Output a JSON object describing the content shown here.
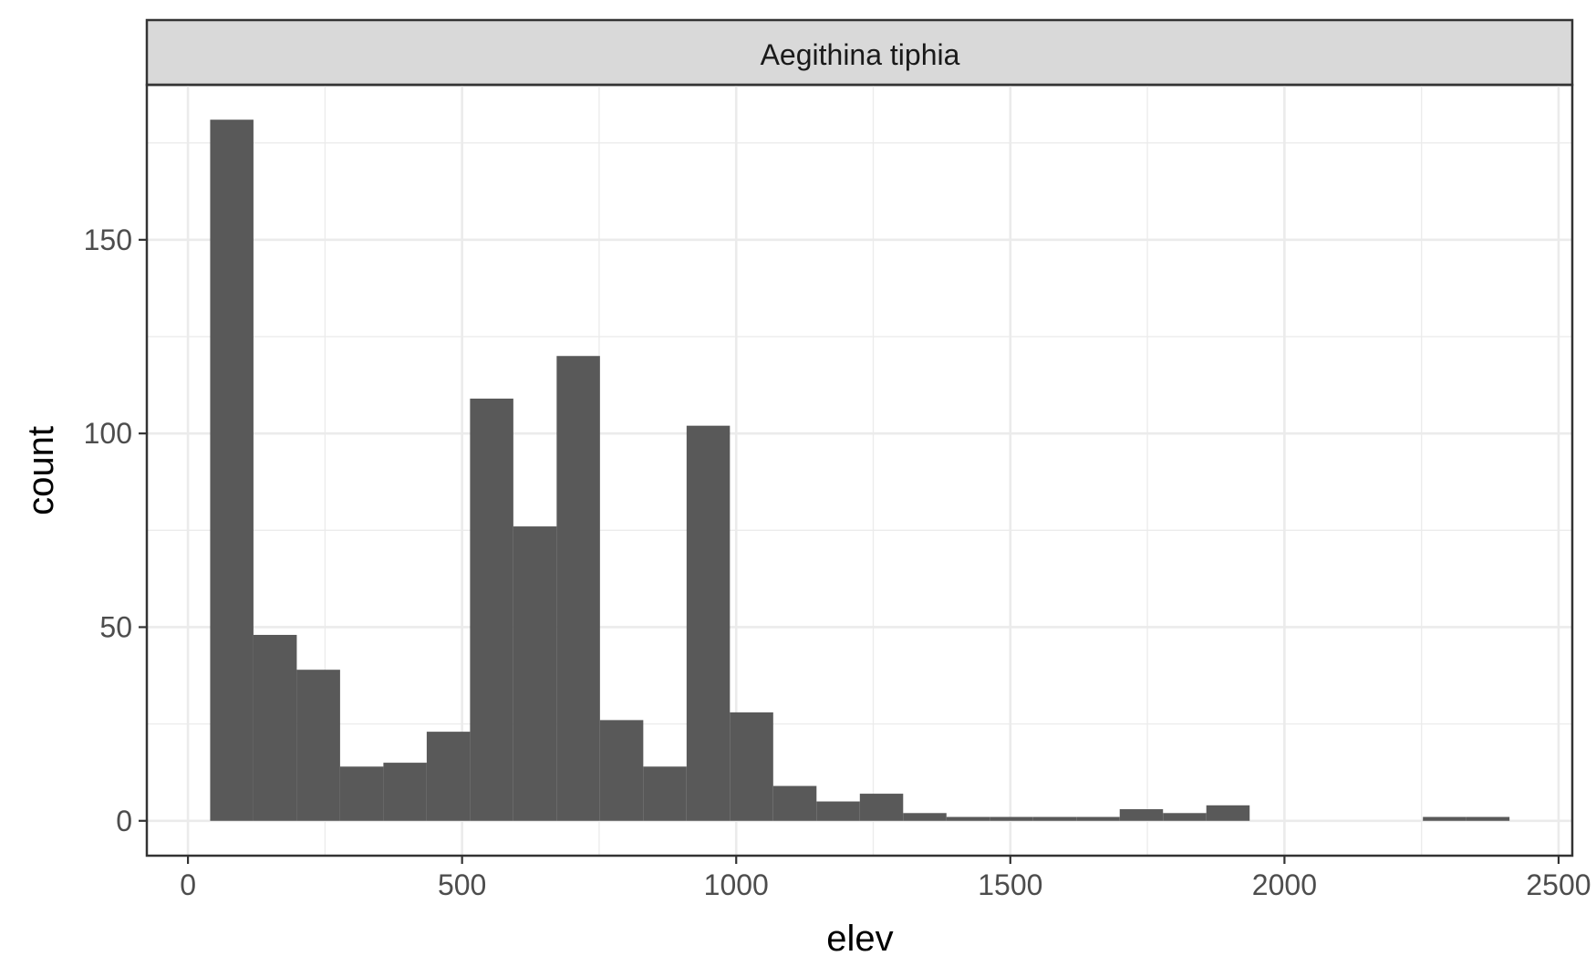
{
  "chart_data": {
    "type": "bar",
    "facet_label": "Aegithina tiphia",
    "xlabel": "elev",
    "ylabel": "count",
    "xlim": [
      -75,
      2525
    ],
    "ylim": [
      -9,
      190
    ],
    "x_ticks": [
      0,
      500,
      1000,
      1500,
      2000,
      2500
    ],
    "y_ticks": [
      0,
      50,
      100,
      150
    ],
    "bin_width": 79,
    "bins": [
      {
        "x": 80,
        "count": 181
      },
      {
        "x": 159,
        "count": 48
      },
      {
        "x": 238,
        "count": 39
      },
      {
        "x": 317,
        "count": 14
      },
      {
        "x": 396,
        "count": 15
      },
      {
        "x": 475,
        "count": 23
      },
      {
        "x": 554,
        "count": 109
      },
      {
        "x": 633,
        "count": 76
      },
      {
        "x": 712,
        "count": 120
      },
      {
        "x": 791,
        "count": 26
      },
      {
        "x": 870,
        "count": 14
      },
      {
        "x": 949,
        "count": 102
      },
      {
        "x": 1028,
        "count": 28
      },
      {
        "x": 1107,
        "count": 9
      },
      {
        "x": 1186,
        "count": 5
      },
      {
        "x": 1265,
        "count": 7
      },
      {
        "x": 1344,
        "count": 2
      },
      {
        "x": 1423,
        "count": 1
      },
      {
        "x": 1502,
        "count": 1
      },
      {
        "x": 1581,
        "count": 1
      },
      {
        "x": 1660,
        "count": 1
      },
      {
        "x": 1739,
        "count": 3
      },
      {
        "x": 1818,
        "count": 2
      },
      {
        "x": 1897,
        "count": 4
      },
      {
        "x": 1976,
        "count": 0
      },
      {
        "x": 2055,
        "count": 0
      },
      {
        "x": 2134,
        "count": 0
      },
      {
        "x": 2213,
        "count": 0
      },
      {
        "x": 2292,
        "count": 1
      },
      {
        "x": 2371,
        "count": 1
      }
    ],
    "grid": true,
    "bar_color": "#595959"
  }
}
